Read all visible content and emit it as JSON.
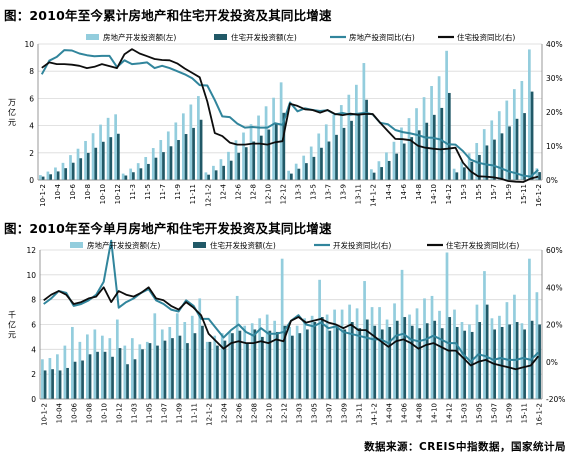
{
  "colors": {
    "series1": "#93cddd",
    "series2": "#215967",
    "series3": "#31859c",
    "series4": "#0d0d0d",
    "grid": "#d9d9d9",
    "axis": "#808080"
  },
  "source_text": "数据来源：CREIS中指数据，国家统计局",
  "chart_data": [
    {
      "type": "bar",
      "title_prefix": "图：",
      "title": "2010年至今累计房地产和住宅开发投资及其同比增速",
      "ylabel": "万亿元",
      "ylim": [
        0,
        10
      ],
      "y_ticks": [
        0,
        2,
        4,
        6,
        8,
        10
      ],
      "y2lim": [
        0,
        40
      ],
      "y2_ticks": [
        "0%",
        "10%",
        "20%",
        "30%",
        "40%"
      ],
      "categories": [
        "10-1-2",
        "10-3",
        "10-4",
        "10-5",
        "10-6",
        "10-7",
        "10-8",
        "10-9",
        "10-10",
        "10-11",
        "10-12",
        "11-1-2",
        "11-3",
        "11-4",
        "11-5",
        "11-6",
        "11-7",
        "11-8",
        "11-9",
        "11-10",
        "11-11",
        "11-12",
        "12-1-2",
        "12-3",
        "12-4",
        "12-5",
        "12-6",
        "12-7",
        "12-8",
        "12-9",
        "12-10",
        "12-11",
        "12-12",
        "13-1-2",
        "13-3",
        "13-4",
        "13-5",
        "13-6",
        "13-7",
        "13-8",
        "13-9",
        "13-10",
        "13-11",
        "13-12",
        "14-1-2",
        "14-3",
        "14-4",
        "14-5",
        "14-6",
        "14-7",
        "14-8",
        "14-9",
        "14-10",
        "14-11",
        "14-12",
        "15-1-2",
        "15-3",
        "15-4",
        "15-5",
        "15-6",
        "15-7",
        "15-8",
        "15-9",
        "15-10",
        "15-11",
        "15-12",
        "16-1-2"
      ],
      "x_tick_labels": [
        "10-1-2",
        "10-4",
        "10-6",
        "10-8",
        "10-10",
        "10-12",
        "11-3",
        "11-5",
        "11-7",
        "11-9",
        "11-11",
        "12-1-2",
        "12-4",
        "12-6",
        "12-8",
        "12-10",
        "12-12",
        "13-3",
        "13-5",
        "13-7",
        "13-9",
        "13-11",
        "14-1-2",
        "14-4",
        "14-6",
        "14-8",
        "14-10",
        "14-12",
        "15-3",
        "15-5",
        "15-7",
        "15-9",
        "15-11",
        "16-1-2"
      ],
      "series": [
        {
          "name": "房地产开发投资额(左)",
          "kind": "bar",
          "axis": "left",
          "values": [
            0.36,
            0.62,
            0.92,
            1.26,
            1.83,
            2.3,
            2.87,
            3.44,
            4.07,
            4.57,
            4.83,
            0.47,
            0.84,
            1.24,
            1.69,
            2.35,
            2.94,
            3.57,
            4.23,
            4.9,
            5.55,
            6.17,
            0.56,
            1.04,
            1.53,
            2.07,
            2.92,
            3.49,
            4.1,
            4.74,
            5.42,
            6.05,
            7.18,
            0.68,
            1.2,
            1.79,
            2.46,
            3.42,
            4.09,
            4.79,
            5.51,
            6.27,
            7.0,
            8.6,
            0.79,
            1.38,
            2.03,
            2.81,
            3.86,
            4.55,
            5.28,
            6.09,
            6.91,
            7.63,
            9.5,
            0.83,
            1.36,
            1.96,
            2.72,
            3.74,
            4.38,
            5.06,
            5.84,
            6.68,
            7.28,
            9.6,
            0.86
          ]
        },
        {
          "name": "住宅开发投资额(左)",
          "kind": "bar",
          "axis": "left",
          "values": [
            0.25,
            0.42,
            0.63,
            0.87,
            1.27,
            1.6,
            1.99,
            2.37,
            2.81,
            3.15,
            3.4,
            0.33,
            0.57,
            0.86,
            1.18,
            1.64,
            2.05,
            2.48,
            2.94,
            3.38,
            3.83,
            4.43,
            0.39,
            0.71,
            1.04,
            1.42,
            2.0,
            2.41,
            2.83,
            3.26,
            3.71,
            4.14,
            4.94,
            0.47,
            0.83,
            1.24,
            1.7,
            2.37,
            2.83,
            3.32,
            3.83,
            4.35,
            4.87,
            5.9,
            0.54,
            0.95,
            1.4,
            1.94,
            2.68,
            3.15,
            3.65,
            4.21,
            4.79,
            5.3,
            6.4,
            0.56,
            0.93,
            1.34,
            1.84,
            2.54,
            2.97,
            3.43,
            3.94,
            4.5,
            4.92,
            6.5,
            0.58
          ]
        },
        {
          "name": "房地产投资同比(右)",
          "kind": "line",
          "axis": "right",
          "values": [
            31.1,
            35.1,
            36.2,
            38.2,
            38.1,
            37.2,
            36.7,
            36.4,
            36.5,
            36.5,
            33.2,
            35.2,
            34.1,
            34.3,
            34.6,
            32.9,
            33.6,
            32.9,
            32.0,
            31.1,
            29.9,
            27.9,
            27.8,
            23.5,
            18.7,
            18.5,
            16.6,
            15.4,
            15.6,
            15.4,
            15.4,
            16.7,
            16.2,
            22.8,
            20.2,
            21.1,
            20.6,
            20.3,
            20.5,
            19.3,
            19.7,
            19.2,
            19.5,
            19.8,
            19.3,
            16.8,
            16.4,
            14.7,
            14.1,
            13.7,
            13.2,
            12.5,
            12.4,
            11.9,
            10.5,
            10.4,
            8.5,
            6.0,
            5.1,
            4.6,
            4.3,
            3.5,
            2.6,
            2.0,
            1.3,
            1.0,
            3.0
          ]
        },
        {
          "name": "住宅投资同比(右)",
          "kind": "line",
          "axis": "right",
          "values": [
            33.0,
            34.6,
            34.1,
            34.1,
            33.9,
            33.6,
            32.9,
            33.3,
            34.1,
            33.5,
            32.9,
            37.0,
            38.5,
            37.2,
            36.4,
            35.6,
            35.3,
            35.2,
            34.3,
            32.8,
            31.5,
            30.2,
            23.1,
            13.8,
            12.9,
            11.0,
            10.4,
            10.4,
            10.7,
            10.7,
            10.4,
            11.1,
            11.4,
            22.4,
            21.8,
            20.8,
            20.6,
            19.8,
            20.6,
            19.4,
            19.1,
            19.5,
            19.2,
            19.4,
            19.4,
            16.8,
            14.4,
            12.1,
            12.0,
            11.7,
            10.1,
            9.5,
            9.2,
            9.0,
            9.2,
            9.5,
            5.1,
            2.6,
            1.1,
            1.0,
            0.8,
            0.4,
            -0.3,
            -0.5,
            -0.6,
            0.4,
            1.0
          ]
        }
      ]
    },
    {
      "type": "bar",
      "title_prefix": "图：",
      "title": "2010年至今单月房地产和住宅开发投资及其同比增速",
      "ylabel": "千亿元",
      "ylim": [
        0,
        12
      ],
      "y_ticks": [
        0,
        2,
        4,
        6,
        8,
        10,
        12
      ],
      "y2lim": [
        -20,
        60
      ],
      "y2_ticks": [
        "-20%",
        "0%",
        "20%",
        "40%",
        "60%"
      ],
      "categories": [
        "10-1-2",
        "10-3",
        "10-4",
        "10-5",
        "10-6",
        "10-7",
        "10-8",
        "10-9",
        "10-10",
        "10-11",
        "10-12",
        "11-1-2",
        "11-3",
        "11-4",
        "11-5",
        "11-6",
        "11-7",
        "11-8",
        "11-9",
        "11-10",
        "11-11",
        "11-12",
        "12-1-2",
        "12-3",
        "12-4",
        "12-5",
        "12-6",
        "12-7",
        "12-8",
        "12-9",
        "12-10",
        "12-11",
        "12-12",
        "13-1-2",
        "13-3",
        "13-4",
        "13-5",
        "13-6",
        "13-7",
        "13-8",
        "13-9",
        "13-10",
        "13-11",
        "13-12",
        "14-1-2",
        "14-3",
        "14-4",
        "14-5",
        "14-6",
        "14-7",
        "14-8",
        "14-9",
        "14-10",
        "14-11",
        "14-12",
        "15-1-2",
        "15-3",
        "15-4",
        "15-5",
        "15-6",
        "15-7",
        "15-8",
        "15-9",
        "15-10",
        "15-11",
        "15-12",
        "16-1-2"
      ],
      "x_tick_labels": [
        "10-1-2",
        "10-04",
        "10-06",
        "10-08",
        "10-10",
        "10-12",
        "11-03",
        "11-05",
        "11-07",
        "11-09",
        "11-11",
        "12-1-2",
        "12-04",
        "12-06",
        "12-08",
        "12-10",
        "12-12",
        "13-03",
        "13-05",
        "13-07",
        "13-09",
        "13-11",
        "14-1-2",
        "14-04",
        "14-06",
        "14-08",
        "14-10",
        "14-12",
        "15-03",
        "15-05",
        "15-07",
        "15-09",
        "15-11",
        "16-1-2"
      ],
      "series": [
        {
          "name": "房地产开发投资额(左)",
          "kind": "bar",
          "axis": "left",
          "values": [
            3.2,
            3.3,
            3.6,
            4.3,
            5.8,
            4.6,
            5.2,
            5.6,
            5.1,
            4.9,
            6.4,
            4.3,
            4.9,
            4.4,
            4.6,
            6.9,
            5.6,
            5.8,
            6.9,
            6.2,
            6.7,
            8.1,
            4.6,
            5.1,
            5.3,
            5.4,
            8.3,
            5.9,
            6.1,
            6.5,
            6.8,
            6.3,
            11.3,
            5.8,
            5.9,
            6.5,
            6.7,
            9.6,
            6.8,
            7.2,
            7.2,
            7.6,
            7.3,
            9.5,
            7.4,
            7.4,
            6.4,
            7.7,
            10.4,
            6.8,
            7.3,
            8.1,
            8.3,
            7.1,
            11.8,
            7.2,
            6.2,
            6.0,
            7.6,
            10.3,
            6.5,
            6.7,
            7.8,
            8.4,
            6.1,
            11.3,
            8.6
          ]
        },
        {
          "name": "住宅开发投资额(左)",
          "kind": "bar",
          "axis": "left",
          "values": [
            2.3,
            2.4,
            2.3,
            2.5,
            3.0,
            3.1,
            3.6,
            3.8,
            3.8,
            3.4,
            4.1,
            2.8,
            3.2,
            4.0,
            4.5,
            4.3,
            4.7,
            4.9,
            5.1,
            4.5,
            5.3,
            5.9,
            4.6,
            4.3,
            4.7,
            5.3,
            5.5,
            4.5,
            5.6,
            5.0,
            5.5,
            5.4,
            5.9,
            5.1,
            5.3,
            5.6,
            6.2,
            6.6,
            5.5,
            5.8,
            5.6,
            6.2,
            5.7,
            6.4,
            5.9,
            5.6,
            5.8,
            6.3,
            6.6,
            5.9,
            5.7,
            6.1,
            6.3,
            5.7,
            6.6,
            5.8,
            5.5,
            5.4,
            6.2,
            7.6,
            5.6,
            5.8,
            6.0,
            6.2,
            5.6,
            6.3,
            6.0
          ]
        },
        {
          "name": "开发投资同比(右)",
          "kind": "line",
          "axis": "right",
          "values": [
            31,
            34,
            38,
            37,
            30,
            31,
            33,
            36,
            43,
            65,
            29,
            32,
            34,
            37,
            39,
            33,
            31,
            28,
            27,
            33,
            30,
            23,
            23,
            18,
            13,
            17,
            20,
            16,
            14,
            18,
            15,
            15,
            16,
            22,
            25,
            20,
            19,
            21,
            18,
            19,
            16,
            15,
            14,
            13,
            12,
            12,
            10,
            14,
            15,
            12,
            11,
            12,
            14,
            12,
            10,
            10,
            4,
            0,
            4,
            3,
            1,
            2,
            1,
            1,
            2,
            1,
            5
          ]
        },
        {
          "name": "住宅开发投资同比(右)",
          "kind": "line",
          "axis": "right",
          "values": [
            33,
            36,
            38,
            36,
            31,
            32,
            34,
            35,
            40,
            32,
            38,
            36,
            35,
            37,
            40,
            34,
            33,
            30,
            28,
            32,
            29,
            25,
            15,
            11,
            7,
            10,
            11,
            10,
            10,
            11,
            10,
            12,
            11,
            22,
            24,
            21,
            22,
            23,
            21,
            20,
            18,
            20,
            17,
            17,
            14,
            11,
            8,
            11,
            12,
            10,
            7,
            9,
            10,
            8,
            6,
            6,
            2,
            -2,
            0,
            1,
            -1,
            -2,
            -3,
            -4,
            -3,
            -2,
            3
          ]
        }
      ]
    }
  ]
}
